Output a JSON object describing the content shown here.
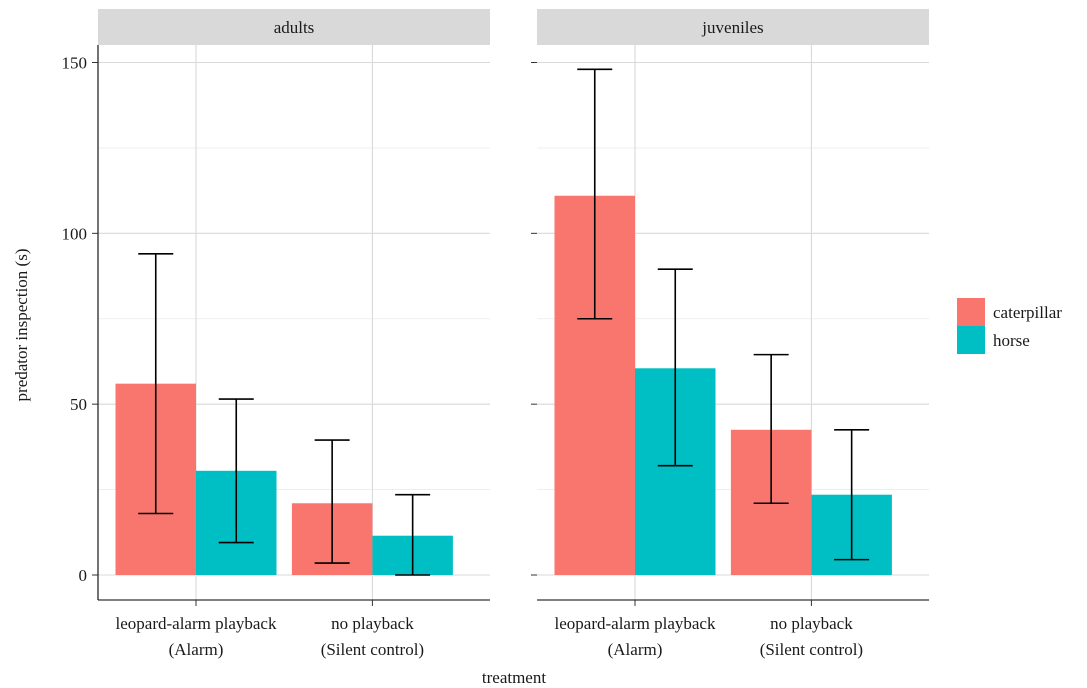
{
  "chart_data": {
    "type": "bar",
    "xlabel": "treatment",
    "ylabel": "predator inspection (s)",
    "ylim": [
      0,
      150
    ],
    "yticks": [
      0,
      50,
      100,
      150
    ],
    "grid": true,
    "legend_position": "right",
    "categories": [
      [
        "leopard-alarm playback",
        "(Alarm)"
      ],
      [
        "no playback",
        "(Silent control)"
      ]
    ],
    "series_names": [
      "caterpillar",
      "horse"
    ],
    "colors": {
      "caterpillar": "#f8766d",
      "horse": "#00bfc4"
    },
    "panels": [
      {
        "strip": "adults",
        "series": [
          {
            "name": "caterpillar",
            "values": [
              56,
              21
            ],
            "lower": [
              18,
              3.5
            ],
            "upper": [
              94,
              39.5
            ]
          },
          {
            "name": "horse",
            "values": [
              30.5,
              11.5
            ],
            "lower": [
              9.5,
              0
            ],
            "upper": [
              51.5,
              23.5
            ]
          }
        ]
      },
      {
        "strip": "juveniles",
        "series": [
          {
            "name": "caterpillar",
            "values": [
              111,
              42.5
            ],
            "lower": [
              75,
              21
            ],
            "upper": [
              148,
              64.5
            ]
          },
          {
            "name": "horse",
            "values": [
              60.5,
              23.5
            ],
            "lower": [
              32,
              4.5
            ],
            "upper": [
              89.5,
              42.5
            ]
          }
        ]
      }
    ]
  }
}
